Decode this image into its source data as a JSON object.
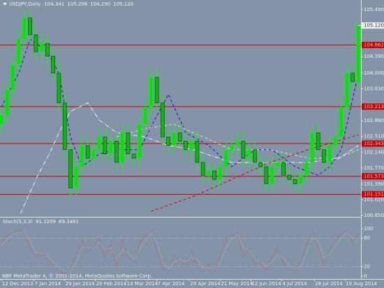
{
  "chart_data": [
    {
      "type": "candlestick",
      "title": "USDJPY,Daily",
      "header_values": [
        "104.341",
        "105.206",
        "104.290",
        "105.120"
      ],
      "bull_color": "#00e400",
      "bear_color": "#00c000",
      "wick_color": "#00ff00",
      "x": [
        0,
        3,
        6,
        9,
        12,
        15,
        18,
        21,
        24,
        27,
        30,
        33,
        36,
        39,
        42,
        45,
        48,
        51,
        54,
        57,
        60,
        63,
        66,
        69,
        72,
        75,
        78,
        81,
        84,
        87,
        90,
        93,
        96,
        99,
        102,
        105,
        108,
        111,
        114,
        117,
        120,
        123,
        126,
        129,
        132,
        135,
        138,
        141,
        144,
        147,
        150,
        153,
        156,
        159,
        162,
        165,
        168,
        171,
        174,
        177,
        180,
        183,
        186
      ],
      "open": [
        102.8,
        103.0,
        103.6,
        104.2,
        104.8,
        105.3,
        104.9,
        104.5,
        104.7,
        104.4,
        104.0,
        103.3,
        102.2,
        101.3,
        101.8,
        102.3,
        102.0,
        102.2,
        102.5,
        102.1,
        102.4,
        101.9,
        102.6,
        102.1,
        102.0,
        102.8,
        103.2,
        103.9,
        103.3,
        102.5,
        102.3,
        102.6,
        102.4,
        102.2,
        102.4,
        101.9,
        101.6,
        101.7,
        101.5,
        101.8,
        102.2,
        102.3,
        102.4,
        102.0,
        102.2,
        101.9,
        101.8,
        101.4,
        101.8,
        101.9,
        101.6,
        101.5,
        101.4,
        101.6,
        101.9,
        102.6,
        102.2,
        101.9,
        102.3,
        102.5,
        103.2,
        104.0,
        103.8
      ],
      "high": [
        103.2,
        103.8,
        104.4,
        105.0,
        105.5,
        105.5,
        105.1,
        104.9,
        104.9,
        104.6,
        104.2,
        103.5,
        102.4,
        102.0,
        102.5,
        102.5,
        102.4,
        102.7,
        102.7,
        102.6,
        102.6,
        102.8,
        102.8,
        102.3,
        103.0,
        103.4,
        104.1,
        104.1,
        103.5,
        102.7,
        102.8,
        102.8,
        102.6,
        102.6,
        102.6,
        102.1,
        101.9,
        101.9,
        102.0,
        102.4,
        102.5,
        102.6,
        102.6,
        102.4,
        102.4,
        102.1,
        102.0,
        102.0,
        102.1,
        102.1,
        101.8,
        101.7,
        101.8,
        102.1,
        102.8,
        102.8,
        102.4,
        102.5,
        102.7,
        103.4,
        104.2,
        104.2,
        105.21
      ],
      "low": [
        102.6,
        102.8,
        103.4,
        104.0,
        104.6,
        104.7,
        104.3,
        104.3,
        104.2,
        103.8,
        103.1,
        102.0,
        101.1,
        101.1,
        101.6,
        101.8,
        101.8,
        102.0,
        101.9,
        101.9,
        101.7,
        101.7,
        101.9,
        101.8,
        101.8,
        102.6,
        103.0,
        103.1,
        102.3,
        102.1,
        102.1,
        102.2,
        102.0,
        102.0,
        101.7,
        101.4,
        101.4,
        101.3,
        101.3,
        101.6,
        102.0,
        102.1,
        101.8,
        101.8,
        101.7,
        101.6,
        101.2,
        101.2,
        101.6,
        101.4,
        101.3,
        101.2,
        101.2,
        101.4,
        101.7,
        102.0,
        101.7,
        101.7,
        102.1,
        102.3,
        103.0,
        103.6,
        103.6
      ],
      "close": [
        103.0,
        103.6,
        104.2,
        104.8,
        105.3,
        104.9,
        104.5,
        104.7,
        104.4,
        104.0,
        103.3,
        102.2,
        101.3,
        101.8,
        102.3,
        102.0,
        102.2,
        102.5,
        102.1,
        102.4,
        101.9,
        102.6,
        102.1,
        102.0,
        102.8,
        103.2,
        103.9,
        103.3,
        102.5,
        102.3,
        102.6,
        102.4,
        102.2,
        102.4,
        101.9,
        101.6,
        101.7,
        101.5,
        101.8,
        102.2,
        102.3,
        102.4,
        102.0,
        102.2,
        101.9,
        101.8,
        101.4,
        101.8,
        101.9,
        101.6,
        101.5,
        101.4,
        101.6,
        101.9,
        102.6,
        102.2,
        101.9,
        102.3,
        102.5,
        103.2,
        104.0,
        103.8,
        105.12
      ],
      "xlim": [
        -0.7,
        187.3
      ],
      "ylim": [
        100.62,
        105.72
      ],
      "xticks": [
        {
          "value": 0,
          "label": "12 Dec 2013"
        },
        {
          "value": 17,
          "label": "7 Jan 2014"
        },
        {
          "value": 33,
          "label": "29 Jan 2014"
        },
        {
          "value": 49,
          "label": "20 Feb 2014"
        },
        {
          "value": 65,
          "label": "14 Mar 2014"
        },
        {
          "value": 81,
          "label": "7 Apr 2014"
        },
        {
          "value": 98,
          "label": "29 Apr 2014"
        },
        {
          "value": 114,
          "label": "21 May 2014"
        },
        {
          "value": 130,
          "label": "12 Jun 2014"
        },
        {
          "value": 146,
          "label": "4 Jul 2014"
        },
        {
          "value": 163,
          "label": "28 Jul 2014"
        },
        {
          "value": 179,
          "label": "19 Aug 2014"
        }
      ],
      "yticks": [
        {
          "value": 105.49,
          "label": "105.490"
        },
        {
          "value": 104.39,
          "label": "104.390"
        },
        {
          "value": 104.0,
          "label": "104.000"
        },
        {
          "value": 103.63,
          "label": "103.630"
        },
        {
          "value": 102.88,
          "label": "102.880"
        },
        {
          "value": 102.51,
          "label": "102.510"
        },
        {
          "value": 102.14,
          "label": "102.140"
        },
        {
          "value": 101.77,
          "label": "101.770"
        },
        {
          "value": 101.39,
          "label": "101.390"
        },
        {
          "value": 101.02,
          "label": "101.020"
        },
        {
          "value": 100.65,
          "label": "100.650"
        }
      ],
      "levels": {
        "color": "#cc0000",
        "values": [
          {
            "value": 104.662,
            "label": "104.662"
          },
          {
            "value": 103.213,
            "label": "103.213"
          },
          {
            "value": 102.343,
            "label": "102.343"
          },
          {
            "value": 101.573,
            "label": "101.573"
          },
          {
            "value": 101.151,
            "label": "101.151"
          }
        ]
      },
      "current_price": {
        "value": 105.12,
        "label": "105.120"
      },
      "lines": [
        {
          "color": "#1a1aa8",
          "style": "dashed",
          "x": [
            0,
            9,
            15,
            24,
            30,
            36,
            42,
            51,
            60,
            72,
            81,
            87,
            96,
            108,
            120,
            132,
            141,
            153,
            165,
            171,
            177,
            183,
            186
          ],
          "values": [
            103.2,
            104.0,
            104.8,
            104.5,
            104.0,
            102.5,
            101.8,
            102.1,
            102.2,
            102.2,
            103.0,
            103.5,
            102.6,
            102.3,
            101.8,
            102.2,
            102.2,
            101.8,
            101.6,
            101.8,
            102.2,
            103.4,
            104.0
          ]
        },
        {
          "color": "#f0f0f0",
          "style": "dashdot",
          "x": [
            10,
            15,
            19,
            25,
            30,
            36,
            45,
            51,
            60,
            75,
            87,
            100,
            120,
            140,
            160,
            176,
            186
          ],
          "values": [
            100.7,
            101.2,
            101.6,
            102.1,
            102.6,
            103.1,
            103.3,
            102.9,
            102.6,
            102.5,
            102.3,
            102.2,
            101.9,
            101.9,
            101.9,
            102.0,
            102.3
          ]
        },
        {
          "color": "#dcdcdc",
          "style": "dashed",
          "x": [
            60,
            75,
            90,
            105,
            120,
            140,
            160,
            175,
            186
          ],
          "values": [
            102.5,
            102.7,
            102.8,
            102.5,
            102.2,
            102.2,
            102.0,
            102.0,
            102.2
          ]
        },
        {
          "color": "#cc0000",
          "style": "dashed",
          "x": [
            78,
            100,
            120,
            140,
            160,
            175,
            186
          ],
          "values": [
            100.75,
            101.1,
            101.5,
            101.9,
            102.2,
            102.4,
            102.55
          ]
        }
      ]
    },
    {
      "type": "line",
      "title": "Stoch(5,3,3)",
      "header_values": [
        "91.1209",
        "69.3461"
      ],
      "x": [
        0,
        3,
        6,
        9,
        12,
        15,
        18,
        21,
        24,
        27,
        30,
        33,
        36,
        39,
        42,
        45,
        48,
        51,
        54,
        57,
        60,
        63,
        66,
        69,
        72,
        75,
        78,
        81,
        84,
        87,
        90,
        93,
        96,
        99,
        102,
        105,
        108,
        111,
        114,
        117,
        120,
        123,
        126,
        129,
        132,
        135,
        138,
        141,
        144,
        147,
        150,
        153,
        156,
        159,
        162,
        165,
        168,
        171,
        174,
        177,
        180,
        183,
        186
      ],
      "xlim": [
        -0.7,
        187.3
      ],
      "ylim": [
        -6,
        122
      ],
      "yticks": [
        0,
        20,
        80,
        100
      ],
      "levels": [
        20,
        80
      ],
      "series": [
        {
          "color": "#e04040",
          "style": "dotted",
          "values": [
            70,
            85,
            90,
            95,
            90,
            60,
            40,
            55,
            35,
            20,
            10,
            5,
            15,
            45,
            75,
            50,
            60,
            80,
            40,
            70,
            20,
            75,
            40,
            30,
            70,
            85,
            95,
            55,
            15,
            10,
            45,
            30,
            25,
            55,
            20,
            10,
            25,
            10,
            45,
            80,
            85,
            90,
            40,
            60,
            25,
            30,
            10,
            40,
            60,
            25,
            15,
            10,
            30,
            65,
            95,
            60,
            25,
            55,
            75,
            90,
            95,
            70,
            91.1209
          ]
        },
        {
          "color": "#c8c8c8",
          "style": "dotted",
          "values": [
            65,
            78,
            88,
            92,
            92,
            75,
            50,
            50,
            43,
            30,
            18,
            10,
            10,
            30,
            60,
            60,
            58,
            72,
            55,
            60,
            35,
            55,
            50,
            35,
            55,
            75,
            90,
            70,
            30,
            15,
            30,
            35,
            30,
            40,
            35,
            18,
            18,
            15,
            30,
            60,
            80,
            88,
            60,
            55,
            35,
            30,
            20,
            30,
            45,
            38,
            22,
            15,
            20,
            50,
            80,
            75,
            40,
            45,
            65,
            80,
            92,
            80,
            69.3461
          ]
        }
      ]
    }
  ],
  "footer": "NBF MetaTrader 4, © 2001-2014, MetaQuotes Software Corp."
}
